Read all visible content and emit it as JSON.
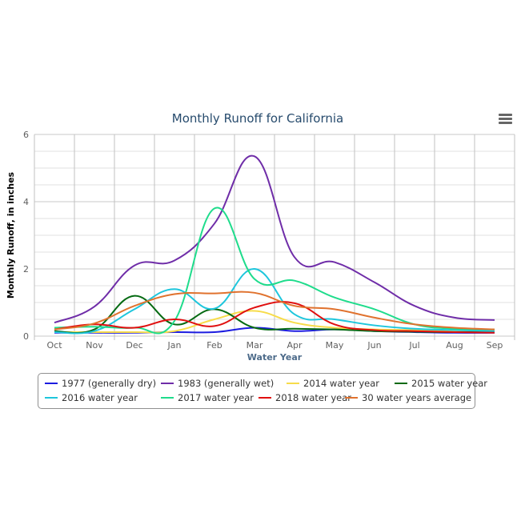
{
  "chart_data": {
    "type": "line",
    "title": "Monthly Runoff for California",
    "xlabel": "Water Year",
    "ylabel": "Monthly Runoff, in inches",
    "ylim": [
      0,
      6
    ],
    "yticks": [
      "0",
      "2",
      "4",
      "6"
    ],
    "grid": true,
    "legend_placement": "bottom",
    "categories": [
      "Oct",
      "Nov",
      "Dec",
      "Jan",
      "Feb",
      "Mar",
      "Apr",
      "May",
      "Jun",
      "Jul",
      "Aug",
      "Sep"
    ],
    "series": [
      {
        "name": "1977 (generally dry)",
        "color": "#1c1ce0",
        "values": [
          0.1,
          0.1,
          0.1,
          0.12,
          0.12,
          0.25,
          0.15,
          0.2,
          0.15,
          0.12,
          0.1,
          0.1
        ]
      },
      {
        "name": "1983 (generally wet)",
        "color": "#6f2da8",
        "values": [
          0.4,
          0.88,
          2.1,
          2.25,
          3.35,
          5.35,
          2.35,
          2.2,
          1.6,
          0.9,
          0.55,
          0.48
        ]
      },
      {
        "name": "2014 water year",
        "color": "#f7dc4a",
        "values": [
          0.12,
          0.12,
          0.12,
          0.15,
          0.5,
          0.75,
          0.4,
          0.25,
          0.2,
          0.18,
          0.15,
          0.15
        ]
      },
      {
        "name": "2015 water year",
        "color": "#056a12",
        "values": [
          0.15,
          0.2,
          1.2,
          0.35,
          0.8,
          0.25,
          0.22,
          0.2,
          0.15,
          0.13,
          0.12,
          0.12
        ]
      },
      {
        "name": "2016 water year",
        "color": "#1ec6dc",
        "values": [
          0.12,
          0.15,
          0.8,
          1.4,
          0.82,
          2.0,
          0.65,
          0.5,
          0.32,
          0.22,
          0.18,
          0.15
        ]
      },
      {
        "name": "2017 water year",
        "color": "#1fdc8c",
        "values": [
          0.25,
          0.28,
          0.25,
          0.45,
          3.8,
          1.7,
          1.65,
          1.15,
          0.8,
          0.35,
          0.22,
          0.2
        ]
      },
      {
        "name": "2018 water year",
        "color": "#e00f0f",
        "values": [
          0.2,
          0.35,
          0.25,
          0.5,
          0.3,
          0.85,
          0.98,
          0.35,
          0.18,
          0.15,
          0.12,
          0.1
        ]
      },
      {
        "name": "30 water years average",
        "color": "#e0722e",
        "values": [
          0.2,
          0.38,
          0.9,
          1.25,
          1.27,
          1.29,
          0.9,
          0.8,
          0.55,
          0.35,
          0.25,
          0.2
        ]
      }
    ]
  },
  "menu_icon": "hamburger-menu-icon"
}
